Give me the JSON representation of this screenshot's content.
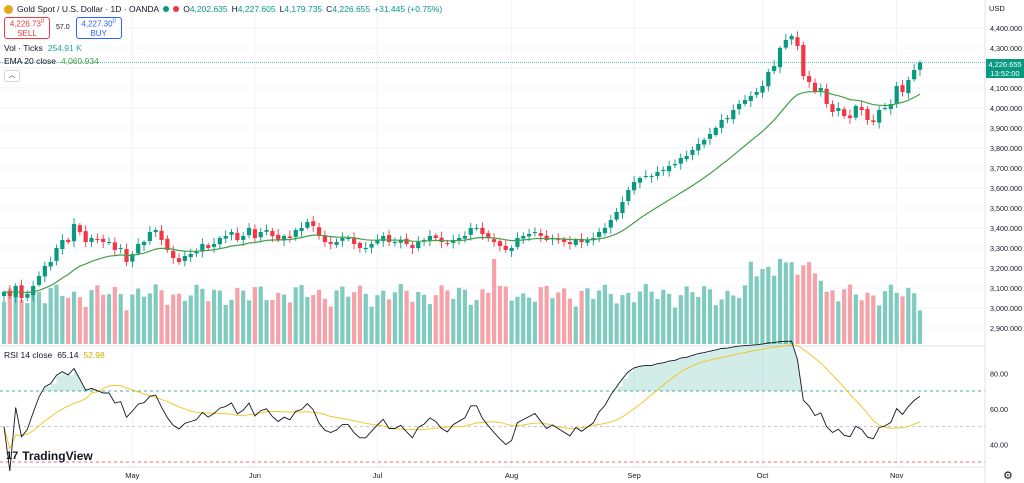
{
  "header": {
    "symbol_title": "Gold Spot / U.S. Dollar · 1D · OANDA",
    "ohlc": [
      {
        "label": "O",
        "value": "4,202.635"
      },
      {
        "label": "H",
        "value": "4,227.605"
      },
      {
        "label": "L",
        "value": "4,179.735"
      },
      {
        "label": "C",
        "value": "4,226.655"
      }
    ],
    "change": "+31.445 (+0.75%)",
    "sell_price": "4,226.73",
    "sell_sup": "0",
    "sell_label": "SELL",
    "spread": "57.0",
    "buy_price": "4,227.30",
    "buy_sup": "0",
    "buy_label": "BUY"
  },
  "indicators": {
    "vol_label": "Vol · Ticks",
    "vol_value": "254.91 K",
    "ema_label": "EMA 20 close",
    "ema_value": "4,060.934",
    "rsi_label": "RSI 14 close",
    "rsi_value": "65.14",
    "rsi_ma_value": "52.98"
  },
  "price_scale": {
    "currency": "USD",
    "current_price": "4,226.655",
    "countdown": "13:52:00"
  },
  "branding": {
    "logo_text": "TradingView",
    "logo_mark": "17"
  },
  "colors": {
    "up": "#089981",
    "down": "#f23645",
    "ema": "#43a047",
    "rsi": "#131722",
    "rsi_ma": "#f0c419",
    "vol_up": "#7fcbc0",
    "vol_down": "#f5a3a9"
  },
  "chart_data": [
    {
      "type": "candlestick",
      "symbol": "Gold Spot / U.S. Dollar",
      "interval": "1D",
      "ylim": [
        2850,
        4450
      ],
      "y_ticks": [
        "4,400.000",
        "4,300.000",
        "4,200.000",
        "4,100.000",
        "4,000.000",
        "3,900.000",
        "3,800.000",
        "3,700.000",
        "3,600.000",
        "3,500.000",
        "3,400.000",
        "3,300.000",
        "3,200.000",
        "3,100.000",
        "3,000.000",
        "2,900.000"
      ],
      "x_ticks": [
        {
          "label": "May",
          "index": 22
        },
        {
          "label": "Jun",
          "index": 43
        },
        {
          "label": "Jul",
          "index": 64
        },
        {
          "label": "Aug",
          "index": 87
        },
        {
          "label": "Sep",
          "index": 108
        },
        {
          "label": "Oct",
          "index": 130
        },
        {
          "label": "Nov",
          "index": 153
        }
      ],
      "close": [
        3080,
        3060,
        3110,
        3050,
        3070,
        3110,
        3160,
        3210,
        3230,
        3300,
        3340,
        3330,
        3420,
        3380,
        3330,
        3350,
        3340,
        3330,
        3330,
        3290,
        3300,
        3230,
        3270,
        3320,
        3330,
        3380,
        3390,
        3340,
        3290,
        3250,
        3230,
        3260,
        3270,
        3280,
        3320,
        3300,
        3320,
        3350,
        3360,
        3380,
        3340,
        3360,
        3400,
        3350,
        3380,
        3390,
        3360,
        3340,
        3360,
        3350,
        3390,
        3400,
        3430,
        3410,
        3360,
        3330,
        3320,
        3330,
        3350,
        3350,
        3320,
        3300,
        3300,
        3320,
        3340,
        3360,
        3330,
        3330,
        3340,
        3320,
        3300,
        3330,
        3340,
        3360,
        3350,
        3330,
        3320,
        3340,
        3350,
        3360,
        3400,
        3400,
        3370,
        3350,
        3330,
        3310,
        3290,
        3300,
        3350,
        3360,
        3370,
        3380,
        3360,
        3340,
        3350,
        3340,
        3330,
        3320,
        3340,
        3330,
        3340,
        3350,
        3380,
        3400,
        3440,
        3480,
        3530,
        3590,
        3630,
        3650,
        3660,
        3660,
        3680,
        3690,
        3710,
        3720,
        3750,
        3760,
        3790,
        3820,
        3840,
        3870,
        3900,
        3940,
        3950,
        3990,
        4020,
        4040,
        4060,
        4080,
        4110,
        4180,
        4210,
        4300,
        4340,
        4360,
        4310,
        4160,
        4130,
        4080,
        4100,
        4020,
        3980,
        4000,
        3960,
        3950,
        4010,
        3990,
        3940,
        3930,
        3990,
        4000,
        4020,
        4110,
        4080,
        4140,
        4190,
        4227
      ],
      "ema20_final": 4060.934
    },
    {
      "type": "bar",
      "name": "Vol · Ticks",
      "last_value": "254.91 K"
    },
    {
      "type": "line",
      "name": "RSI 14 close",
      "ylim": [
        30,
        92
      ],
      "y_ticks": [
        "80.00",
        "60.00",
        "40.00"
      ],
      "bands": [
        70,
        50,
        30
      ],
      "last_value": 65.14,
      "ma_last_value": 52.98
    }
  ]
}
